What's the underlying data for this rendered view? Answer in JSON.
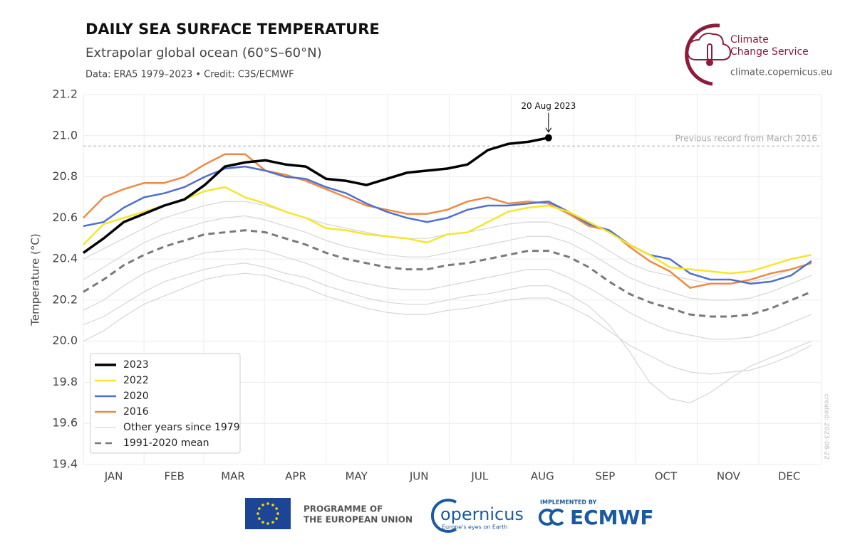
{
  "chart_data": {
    "type": "line",
    "title": "DAILY SEA SURFACE TEMPERATURE",
    "subtitle": "Extrapolar global ocean (60°S–60°N)",
    "credit": "Data: ERA5 1979–2023 • Credit: C3S/ECMWF",
    "y_label": "Temperature (°C)",
    "xlim": [
      1,
      366
    ],
    "xticks": [
      {
        "value": 16,
        "label": "JAN"
      },
      {
        "value": 46,
        "label": "FEB"
      },
      {
        "value": 75,
        "label": "MAR"
      },
      {
        "value": 106,
        "label": "APR"
      },
      {
        "value": 136,
        "label": "MAY"
      },
      {
        "value": 167,
        "label": "JUN"
      },
      {
        "value": 197,
        "label": "JUL"
      },
      {
        "value": 228,
        "label": "AUG"
      },
      {
        "value": 259,
        "label": "SEP"
      },
      {
        "value": 289,
        "label": "OCT"
      },
      {
        "value": 320,
        "label": "NOV"
      },
      {
        "value": 350,
        "label": "DEC"
      }
    ],
    "ylim": [
      19.4,
      21.2
    ],
    "yticks": [
      19.4,
      19.6,
      19.8,
      {
        "value": 20,
        "label": "20.0"
      },
      20.2,
      20.4,
      20.6,
      20.8,
      {
        "value": 21,
        "label": "21.0"
      },
      21.2
    ],
    "grid": true,
    "legend": "lower left",
    "x": [
      1,
      11,
      21,
      31,
      41,
      51,
      61,
      71,
      81,
      91,
      101,
      111,
      121,
      131,
      141,
      151,
      161,
      171,
      181,
      191,
      201,
      211,
      221,
      231,
      241,
      251,
      261,
      271,
      281,
      291,
      301,
      311,
      321,
      331,
      341,
      351,
      361
    ],
    "series": [
      {
        "name": "2023",
        "color": "#000000",
        "values": [
          20.43,
          20.5,
          20.58,
          20.62,
          20.66,
          20.69,
          20.76,
          20.85,
          20.87,
          20.88,
          20.86,
          20.85,
          20.79,
          20.78,
          20.76,
          20.79,
          20.82,
          20.83,
          20.84,
          20.86,
          20.93,
          20.96,
          20.97,
          20.99,
          null,
          null,
          null,
          null,
          null,
          null,
          null,
          null,
          null,
          null,
          null,
          null,
          null
        ]
      },
      {
        "name": "2022",
        "color": "#f5e62a",
        "values": [
          20.47,
          20.57,
          20.6,
          20.63,
          20.66,
          20.69,
          20.73,
          20.75,
          20.7,
          20.67,
          20.63,
          20.6,
          20.55,
          20.54,
          20.52,
          20.51,
          20.5,
          20.48,
          20.52,
          20.53,
          20.58,
          20.63,
          20.65,
          20.66,
          20.63,
          20.58,
          20.53,
          20.47,
          20.42,
          20.36,
          20.35,
          20.34,
          20.33,
          20.34,
          20.37,
          20.4,
          20.42
        ]
      },
      {
        "name": "2020",
        "color": "#4f6fd1",
        "values": [
          20.56,
          20.58,
          20.65,
          20.7,
          20.72,
          20.75,
          20.8,
          20.84,
          20.85,
          20.83,
          20.8,
          20.79,
          20.75,
          20.72,
          20.67,
          20.63,
          20.6,
          20.58,
          20.6,
          20.64,
          20.66,
          20.66,
          20.67,
          20.68,
          20.63,
          20.57,
          20.54,
          20.47,
          20.42,
          20.4,
          20.33,
          20.3,
          20.3,
          20.28,
          20.29,
          20.32,
          20.39
        ]
      },
      {
        "name": "2016",
        "color": "#ee8a45",
        "values": [
          20.6,
          20.7,
          20.74,
          20.77,
          20.77,
          20.8,
          20.86,
          20.91,
          20.91,
          20.83,
          20.81,
          20.78,
          20.74,
          20.7,
          20.66,
          20.64,
          20.62,
          20.62,
          20.64,
          20.68,
          20.7,
          20.67,
          20.68,
          20.67,
          20.62,
          20.56,
          20.54,
          20.46,
          20.39,
          20.34,
          20.26,
          20.28,
          20.28,
          20.3,
          20.33,
          20.35,
          20.38
        ]
      },
      {
        "name": "Other years since 1979",
        "color": "#d6d6d6",
        "values": [
          [
            20.4,
            20.45,
            20.5,
            20.55,
            20.6,
            20.63,
            20.66,
            20.68,
            20.68,
            20.66,
            20.63,
            20.6,
            20.57,
            20.55,
            20.53,
            20.51,
            20.5,
            20.5,
            20.52,
            20.53,
            20.55,
            20.57,
            20.58,
            20.58,
            20.55,
            20.5,
            20.44,
            20.38,
            20.34,
            20.32,
            20.3,
            20.28,
            20.28,
            20.29,
            20.31,
            20.35,
            20.38
          ],
          [
            20.0,
            20.05,
            20.12,
            20.18,
            20.22,
            20.26,
            20.3,
            20.32,
            20.33,
            20.32,
            20.29,
            20.26,
            20.22,
            20.19,
            20.16,
            20.14,
            20.13,
            20.13,
            20.15,
            20.16,
            20.18,
            20.2,
            20.21,
            20.21,
            20.17,
            20.12,
            20.05,
            19.98,
            19.93,
            19.88,
            19.85,
            19.84,
            19.85,
            19.86,
            19.89,
            19.93,
            19.98
          ],
          [
            20.15,
            20.2,
            20.27,
            20.33,
            20.37,
            20.4,
            20.43,
            20.44,
            20.45,
            20.44,
            20.41,
            20.38,
            20.34,
            20.3,
            20.28,
            20.26,
            20.25,
            20.25,
            20.27,
            20.29,
            20.31,
            20.33,
            20.35,
            20.35,
            20.31,
            20.26,
            20.2,
            20.14,
            20.09,
            20.05,
            20.03,
            20.01,
            20.01,
            20.02,
            20.05,
            20.09,
            20.13
          ],
          [
            20.3,
            20.36,
            20.42,
            20.48,
            20.52,
            20.55,
            20.58,
            20.6,
            20.61,
            20.59,
            20.56,
            20.53,
            20.49,
            20.46,
            20.44,
            20.42,
            20.41,
            20.41,
            20.43,
            20.45,
            20.47,
            20.49,
            20.51,
            20.51,
            20.48,
            20.43,
            20.37,
            20.31,
            20.27,
            20.24,
            20.21,
            20.2,
            20.2,
            20.21,
            20.24,
            20.28,
            20.32
          ],
          [
            20.08,
            20.12,
            20.18,
            20.24,
            20.29,
            20.32,
            20.35,
            20.37,
            20.38,
            20.36,
            20.33,
            20.31,
            20.27,
            20.24,
            20.21,
            20.19,
            20.18,
            20.18,
            20.2,
            20.22,
            20.23,
            20.25,
            20.27,
            20.27,
            20.23,
            20.17,
            20.08,
            19.95,
            19.8,
            19.72,
            19.7,
            19.75,
            19.82,
            19.88,
            19.92,
            19.96,
            20.0
          ]
        ]
      },
      {
        "name": "1991-2020 mean",
        "color": "#7a7a7a",
        "dash": true,
        "values": [
          20.24,
          20.3,
          20.37,
          20.42,
          20.46,
          20.49,
          20.52,
          20.53,
          20.54,
          20.53,
          20.5,
          20.47,
          20.43,
          20.4,
          20.38,
          20.36,
          20.35,
          20.35,
          20.37,
          20.38,
          20.4,
          20.42,
          20.44,
          20.44,
          20.41,
          20.36,
          20.29,
          20.23,
          20.19,
          20.16,
          20.13,
          20.12,
          20.12,
          20.13,
          20.16,
          20.2,
          20.24
        ]
      }
    ],
    "annotations": {
      "last_point": "20 Aug 2023",
      "record": {
        "value": 20.95,
        "label": "Previous record from March 2016"
      }
    }
  },
  "header": {
    "logo_line1": "Climate",
    "logo_line2": "Change Service",
    "url": "climate.copernicus.eu"
  },
  "side_note": "created: 2023-08-22",
  "footer": {
    "eu_line1": "PROGRAMME OF",
    "eu_line2": "THE EUROPEAN UNION",
    "copernicus": "opernicus",
    "copernicus_tagline": "Europe's eyes on Earth",
    "implemented": "IMPLEMENTED BY",
    "ecmwf": "ECMWF"
  }
}
